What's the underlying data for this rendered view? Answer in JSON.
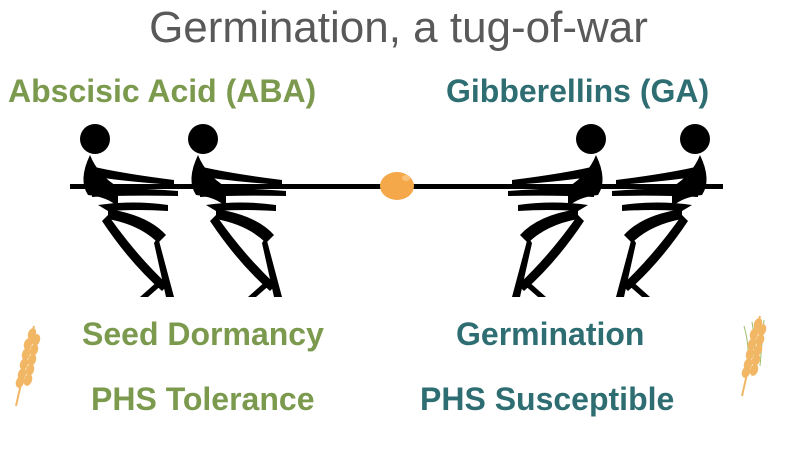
{
  "title": "Germination, a tug-of-war",
  "left": {
    "hormone": "Abscisic Acid (ABA)",
    "outcome": "Seed Dormancy",
    "trait": "PHS Tolerance"
  },
  "right": {
    "hormone": "Gibberellins (GA)",
    "outcome": "Germination",
    "trait": "PHS Susceptible"
  },
  "colors": {
    "aba": "#7b9a4e",
    "ga": "#2e6e73",
    "title": "#595959",
    "seed": "#f5a84a",
    "rope": "#000000",
    "wheat": "#f2b765"
  },
  "icons": [
    "person-pulling-icon",
    "seed-icon",
    "wheat-ear-icon"
  ]
}
